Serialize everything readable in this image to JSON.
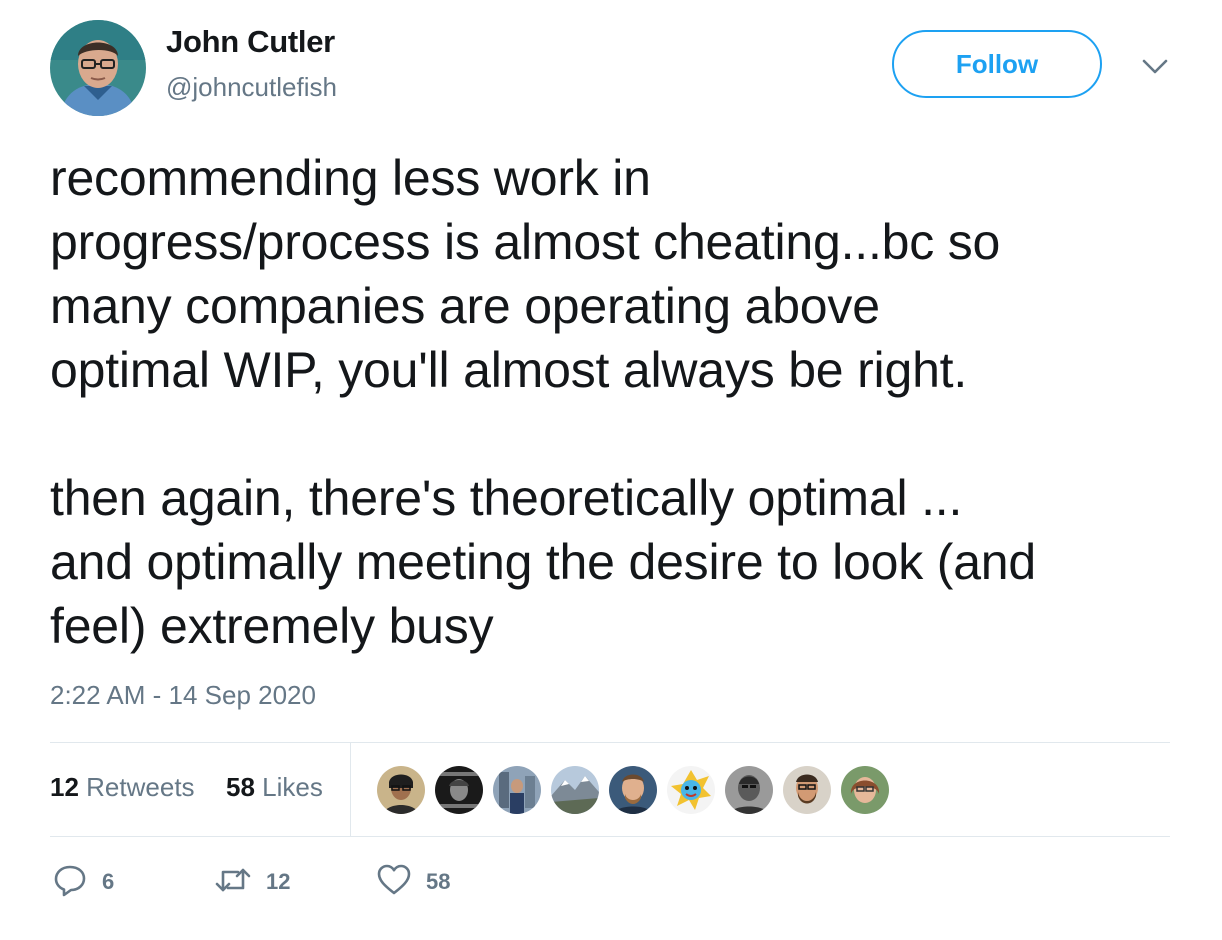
{
  "author": {
    "name": "John Cutler",
    "handle": "@johncutlefish"
  },
  "follow_label": "Follow",
  "tweet": {
    "paragraphs": [
      "recommending less work in\nprogress/process is almost cheating...bc so\nmany companies are operating above\noptimal WIP, you'll almost always be right.",
      "then again, there's theoretically optimal ...\nand optimally meeting the desire to look (and\nfeel) extremely busy"
    ],
    "timestamp": "2:22 AM - 14 Sep 2020"
  },
  "stats": {
    "retweets_count": "12",
    "retweets_label": "Retweets",
    "likes_count": "58",
    "likes_label": "Likes"
  },
  "actions": {
    "reply_count": "6",
    "retweet_count": "12",
    "like_count": "58"
  },
  "colors": {
    "accent": "#1da1f2",
    "secondary_text": "#657786",
    "divider": "#e1e8ed"
  }
}
